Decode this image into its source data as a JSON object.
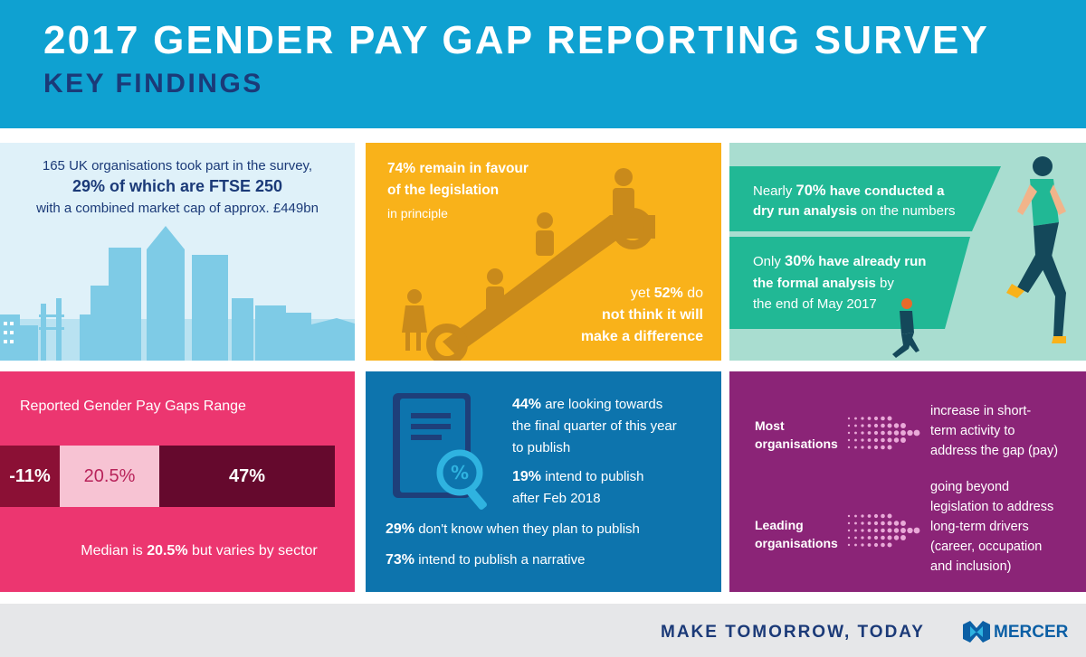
{
  "header": {
    "title": "2017 GENDER PAY GAP REPORTING SURVEY",
    "subtitle": "KEY FINDINGS"
  },
  "panel_participants": {
    "line1": "165 UK organisations took part in the survey,",
    "line2": "29% of which are FTSE 250",
    "line3": "with a combined market cap of approx. £449bn",
    "icon": "city-skyline-icon",
    "color": "#dff1f9"
  },
  "panel_legislation": {
    "favour_pct": "74%",
    "favour_l1": "remain in favour",
    "favour_l2": "of the legislation",
    "favour_l3": "in principle",
    "diff_l1_pre": "yet ",
    "diff_pct": "52%",
    "diff_l1_post": " do",
    "diff_l2": "not think it will",
    "diff_l3": "make a difference",
    "icon": "escalator-icon",
    "color": "#f9b21a"
  },
  "panel_analysis": {
    "dry_l1_pre": "Nearly ",
    "dry_pct": "70%",
    "dry_l1_post": " have conducted a",
    "dry_l2_bold": "dry run analysis",
    "dry_l2_post": " on the numbers",
    "formal_l1_pre": "Only ",
    "formal_pct": "30%",
    "formal_l1_post": " have already run",
    "formal_l2_bold": "the formal analysis",
    "formal_l2_post": " by",
    "formal_l3": "the end of May 2017",
    "icon": "runner-icon",
    "color": "#a9ddd0"
  },
  "panel_range": {
    "title": "Reported Gender Pay Gaps Range",
    "low": "-11%",
    "median_value": "20.5%",
    "high": "47%",
    "median_pre": "Median is ",
    "median_pct": "20.5%",
    "median_post": " but varies by sector",
    "color": "#ec3670"
  },
  "panel_publish": {
    "q4_pct": "44%",
    "q4_l1": " are looking towards",
    "q4_l2": "the final quarter of this year",
    "q4_l3": "to publish",
    "feb_pct": "19%",
    "feb_l1": " intend to publish",
    "feb_l2": "after Feb 2018",
    "unknown_pct": "29%",
    "unknown_txt": " don't know when they plan to publish",
    "narrative_pct": "73%",
    "narrative_txt": " intend to publish a narrative",
    "icon": "document-magnifier-icon",
    "color": "#0d74ad"
  },
  "panel_organisations": {
    "most_l1": "Most",
    "most_l2": "organisations",
    "most_desc": [
      "increase in short-",
      "term activity to",
      "address the gap (pay)"
    ],
    "leading_l1": "Leading",
    "leading_l2": "organisations",
    "leading_desc": [
      "going beyond",
      "legislation to address",
      "long-term drivers",
      "(career, occupation",
      "and inclusion)"
    ],
    "icon": "dotted-arrow-icon",
    "color": "#8b2477"
  },
  "footer": {
    "tagline": "MAKE TOMORROW, TODAY",
    "brand": "MERCER",
    "icon": "mercer-logo-icon"
  }
}
